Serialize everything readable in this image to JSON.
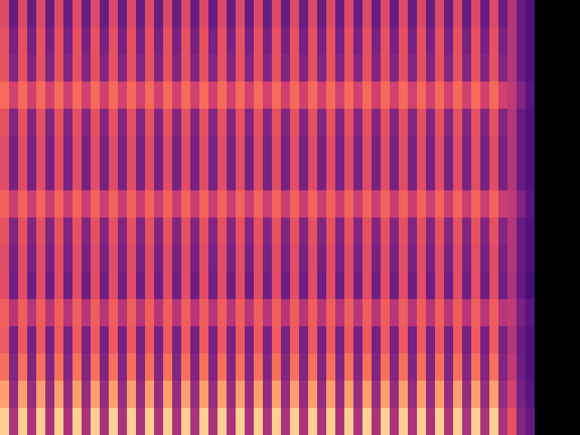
{
  "chart_data": {
    "type": "heatmap",
    "tick_labels": false,
    "grid": false,
    "color_range": [
      -80,
      0
    ],
    "cells": [
      [
        -32,
        -55,
        -32,
        -55,
        -32,
        -55,
        -32,
        -55,
        -32,
        -55,
        -32,
        -55,
        -32,
        -55,
        -32,
        -55,
        -32,
        -55,
        -32,
        -55,
        -32,
        -55,
        -32,
        -55,
        -32,
        -55,
        -32,
        -55,
        -32,
        -55,
        -32,
        -55,
        -32,
        -55,
        -32,
        -55,
        -32,
        -55,
        -32,
        -55,
        -32,
        -55,
        -32,
        -55,
        -32,
        -55,
        -32,
        -55,
        -32,
        -55,
        -32,
        -55,
        -32,
        -55,
        -32,
        -55,
        -40,
        -55,
        -60,
        -80,
        -80,
        -80,
        -80,
        -80
      ],
      [
        -30,
        -52,
        -30,
        -52,
        -30,
        -52,
        -30,
        -52,
        -30,
        -52,
        -30,
        -52,
        -30,
        -52,
        -30,
        -52,
        -30,
        -52,
        -30,
        -52,
        -30,
        -52,
        -30,
        -52,
        -30,
        -52,
        -30,
        -52,
        -30,
        -52,
        -30,
        -52,
        -30,
        -52,
        -30,
        -52,
        -30,
        -52,
        -30,
        -52,
        -30,
        -52,
        -30,
        -52,
        -30,
        -52,
        -30,
        -52,
        -30,
        -52,
        -30,
        -52,
        -30,
        -52,
        -30,
        -52,
        -40,
        -55,
        -60,
        -80,
        -80,
        -80,
        -80,
        -80
      ],
      [
        -30,
        -50,
        -30,
        -50,
        -30,
        -50,
        -30,
        -50,
        -30,
        -50,
        -30,
        -50,
        -30,
        -50,
        -30,
        -50,
        -30,
        -50,
        -30,
        -50,
        -30,
        -50,
        -30,
        -50,
        -30,
        -50,
        -30,
        -50,
        -30,
        -50,
        -30,
        -50,
        -30,
        -50,
        -30,
        -50,
        -30,
        -50,
        -30,
        -50,
        -30,
        -50,
        -30,
        -50,
        -30,
        -50,
        -30,
        -50,
        -30,
        -50,
        -30,
        -50,
        -30,
        -50,
        -30,
        -50,
        -40,
        -55,
        -60,
        -80,
        -80,
        -80,
        -80,
        -80
      ],
      [
        -25,
        -35,
        -25,
        -35,
        -25,
        -35,
        -25,
        -35,
        -25,
        -35,
        -25,
        -35,
        -25,
        -35,
        -25,
        -35,
        -25,
        -35,
        -25,
        -35,
        -25,
        -35,
        -25,
        -35,
        -25,
        -35,
        -25,
        -35,
        -25,
        -35,
        -25,
        -35,
        -25,
        -35,
        -25,
        -35,
        -25,
        -35,
        -25,
        -35,
        -25,
        -35,
        -25,
        -35,
        -25,
        -35,
        -25,
        -35,
        -25,
        -35,
        -25,
        -35,
        -25,
        -35,
        -25,
        -35,
        -38,
        -50,
        -58,
        -80,
        -80,
        -80,
        -80,
        -80
      ],
      [
        -30,
        -50,
        -30,
        -50,
        -30,
        -50,
        -30,
        -50,
        -30,
        -50,
        -30,
        -50,
        -30,
        -50,
        -30,
        -50,
        -30,
        -50,
        -30,
        -50,
        -30,
        -50,
        -30,
        -50,
        -30,
        -50,
        -30,
        -50,
        -30,
        -50,
        -30,
        -50,
        -30,
        -50,
        -30,
        -50,
        -30,
        -50,
        -30,
        -50,
        -30,
        -50,
        -30,
        -50,
        -30,
        -50,
        -30,
        -50,
        -30,
        -50,
        -30,
        -50,
        -30,
        -50,
        -30,
        -50,
        -40,
        -55,
        -60,
        -80,
        -80,
        -80,
        -80,
        -80
      ],
      [
        -31,
        -52,
        -31,
        -52,
        -31,
        -52,
        -31,
        -52,
        -31,
        -52,
        -31,
        -52,
        -31,
        -52,
        -31,
        -52,
        -31,
        -52,
        -31,
        -52,
        -31,
        -52,
        -31,
        -52,
        -31,
        -52,
        -31,
        -52,
        -31,
        -52,
        -31,
        -52,
        -31,
        -52,
        -31,
        -52,
        -31,
        -52,
        -31,
        -52,
        -31,
        -52,
        -31,
        -52,
        -31,
        -52,
        -31,
        -52,
        -31,
        -52,
        -31,
        -52,
        -31,
        -52,
        -31,
        -52,
        -40,
        -55,
        -60,
        -80,
        -80,
        -80,
        -80,
        -80
      ],
      [
        -31,
        -52,
        -31,
        -52,
        -31,
        -52,
        -31,
        -52,
        -31,
        -52,
        -31,
        -52,
        -31,
        -52,
        -31,
        -52,
        -31,
        -52,
        -31,
        -52,
        -31,
        -52,
        -31,
        -52,
        -31,
        -52,
        -31,
        -52,
        -31,
        -52,
        -31,
        -52,
        -31,
        -52,
        -31,
        -52,
        -31,
        -52,
        -31,
        -52,
        -31,
        -52,
        -31,
        -52,
        -31,
        -52,
        -31,
        -52,
        -31,
        -52,
        -31,
        -52,
        -31,
        -52,
        -31,
        -52,
        -40,
        -55,
        -60,
        -80,
        -80,
        -80,
        -80,
        -80
      ],
      [
        -26,
        -36,
        -26,
        -36,
        -26,
        -36,
        -26,
        -36,
        -26,
        -36,
        -26,
        -36,
        -26,
        -36,
        -26,
        -36,
        -26,
        -36,
        -26,
        -36,
        -26,
        -36,
        -26,
        -36,
        -26,
        -36,
        -26,
        -36,
        -26,
        -36,
        -26,
        -36,
        -26,
        -36,
        -26,
        -36,
        -26,
        -36,
        -26,
        -36,
        -26,
        -36,
        -26,
        -36,
        -26,
        -36,
        -26,
        -36,
        -26,
        -36,
        -26,
        -36,
        -26,
        -36,
        -26,
        -36,
        -38,
        -50,
        -58,
        -80,
        -80,
        -80,
        -80,
        -80
      ],
      [
        -30,
        -50,
        -30,
        -50,
        -30,
        -50,
        -30,
        -50,
        -30,
        -50,
        -30,
        -50,
        -30,
        -50,
        -30,
        -50,
        -30,
        -50,
        -30,
        -50,
        -30,
        -50,
        -30,
        -50,
        -30,
        -50,
        -30,
        -50,
        -30,
        -50,
        -30,
        -50,
        -30,
        -50,
        -30,
        -50,
        -30,
        -50,
        -30,
        -50,
        -30,
        -50,
        -30,
        -50,
        -30,
        -50,
        -30,
        -50,
        -30,
        -50,
        -30,
        -50,
        -30,
        -50,
        -30,
        -50,
        -40,
        -55,
        -60,
        -80,
        -80,
        -80,
        -80,
        -80
      ],
      [
        -31,
        -52,
        -31,
        -52,
        -31,
        -52,
        -31,
        -52,
        -31,
        -52,
        -31,
        -52,
        -31,
        -52,
        -31,
        -52,
        -31,
        -52,
        -31,
        -52,
        -31,
        -52,
        -31,
        -52,
        -31,
        -52,
        -31,
        -52,
        -31,
        -52,
        -31,
        -52,
        -31,
        -52,
        -31,
        -52,
        -31,
        -52,
        -31,
        -52,
        -31,
        -52,
        -31,
        -52,
        -31,
        -52,
        -31,
        -52,
        -31,
        -52,
        -31,
        -52,
        -31,
        -52,
        -31,
        -52,
        -40,
        -55,
        -60,
        -80,
        -80,
        -80,
        -80,
        -80
      ],
      [
        -31,
        -54,
        -31,
        -54,
        -31,
        -54,
        -31,
        -54,
        -31,
        -54,
        -31,
        -54,
        -31,
        -54,
        -31,
        -54,
        -31,
        -54,
        -31,
        -54,
        -31,
        -54,
        -31,
        -54,
        -31,
        -54,
        -31,
        -54,
        -31,
        -54,
        -31,
        -54,
        -31,
        -54,
        -31,
        -54,
        -31,
        -54,
        -31,
        -54,
        -31,
        -54,
        -31,
        -54,
        -31,
        -54,
        -31,
        -54,
        -31,
        -54,
        -31,
        -54,
        -31,
        -54,
        -31,
        -54,
        -42,
        -56,
        -62,
        -80,
        -80,
        -80,
        -80,
        -80
      ],
      [
        -27,
        -40,
        -27,
        -40,
        -27,
        -40,
        -27,
        -40,
        -27,
        -40,
        -27,
        -40,
        -27,
        -40,
        -27,
        -40,
        -27,
        -40,
        -27,
        -40,
        -27,
        -40,
        -27,
        -40,
        -27,
        -40,
        -27,
        -40,
        -27,
        -40,
        -27,
        -40,
        -27,
        -40,
        -27,
        -40,
        -27,
        -40,
        -27,
        -40,
        -27,
        -40,
        -27,
        -40,
        -27,
        -40,
        -27,
        -40,
        -27,
        -40,
        -27,
        -40,
        -27,
        -40,
        -27,
        -40,
        -38,
        -52,
        -58,
        -80,
        -80,
        -80,
        -80,
        -80
      ],
      [
        -28,
        -52,
        -28,
        -52,
        -28,
        -52,
        -28,
        -52,
        -28,
        -52,
        -28,
        -52,
        -28,
        -52,
        -28,
        -52,
        -28,
        -52,
        -28,
        -52,
        -28,
        -52,
        -28,
        -52,
        -28,
        -52,
        -28,
        -52,
        -28,
        -52,
        -28,
        -52,
        -28,
        -52,
        -28,
        -52,
        -28,
        -52,
        -28,
        -52,
        -28,
        -52,
        -28,
        -52,
        -28,
        -52,
        -28,
        -52,
        -28,
        -52,
        -28,
        -52,
        -28,
        -52,
        -28,
        -52,
        -40,
        -55,
        -60,
        -80,
        -80,
        -80,
        -80,
        -80
      ],
      [
        -24,
        -50,
        -24,
        -50,
        -24,
        -50,
        -24,
        -50,
        -24,
        -50,
        -24,
        -50,
        -24,
        -50,
        -24,
        -50,
        -24,
        -50,
        -24,
        -50,
        -24,
        -50,
        -24,
        -50,
        -24,
        -50,
        -24,
        -50,
        -24,
        -50,
        -24,
        -50,
        -24,
        -50,
        -24,
        -50,
        -24,
        -50,
        -24,
        -50,
        -24,
        -50,
        -24,
        -50,
        -24,
        -50,
        -24,
        -50,
        -24,
        -50,
        -24,
        -50,
        -24,
        -50,
        -24,
        -50,
        -38,
        -54,
        -60,
        -80,
        -80,
        -80,
        -80,
        -80
      ],
      [
        -16,
        -46,
        -16,
        -46,
        -16,
        -46,
        -16,
        -46,
        -16,
        -46,
        -16,
        -46,
        -16,
        -46,
        -16,
        -46,
        -16,
        -46,
        -16,
        -46,
        -16,
        -46,
        -16,
        -46,
        -16,
        -46,
        -16,
        -46,
        -16,
        -46,
        -16,
        -46,
        -16,
        -46,
        -16,
        -46,
        -16,
        -46,
        -16,
        -46,
        -16,
        -46,
        -16,
        -46,
        -16,
        -46,
        -16,
        -46,
        -16,
        -46,
        -16,
        -46,
        -16,
        -46,
        -16,
        -46,
        -34,
        -52,
        -58,
        -80,
        -80,
        -80,
        -80,
        -80
      ],
      [
        -8,
        -42,
        -8,
        -42,
        -8,
        -42,
        -8,
        -42,
        -8,
        -42,
        -8,
        -42,
        -8,
        -42,
        -8,
        -42,
        -8,
        -42,
        -8,
        -42,
        -8,
        -42,
        -8,
        -42,
        -8,
        -42,
        -8,
        -42,
        -8,
        -42,
        -8,
        -42,
        -8,
        -42,
        -8,
        -42,
        -8,
        -42,
        -8,
        -42,
        -8,
        -42,
        -8,
        -42,
        -8,
        -42,
        -8,
        -42,
        -8,
        -42,
        -8,
        -42,
        -8,
        -42,
        -8,
        -42,
        -30,
        -50,
        -56,
        -80,
        -80,
        -80,
        -80,
        -80
      ]
    ]
  }
}
